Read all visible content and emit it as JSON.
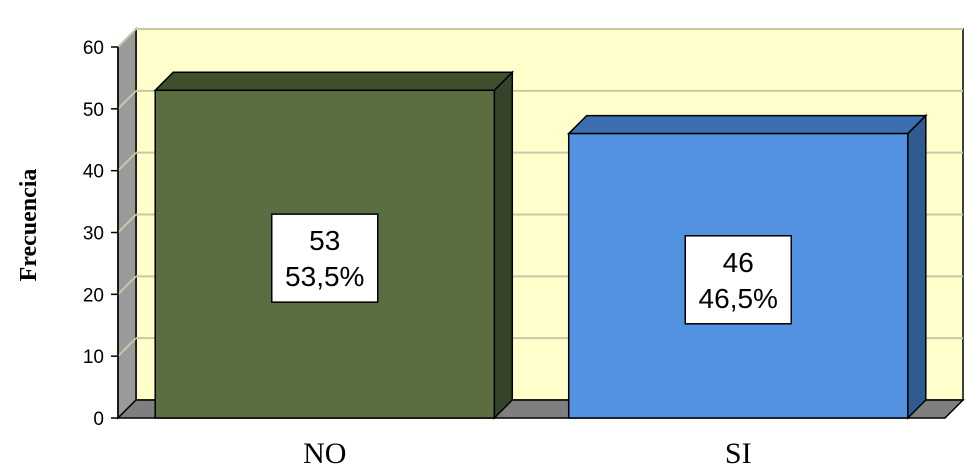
{
  "chart_data": {
    "type": "bar",
    "categories": [
      "NO",
      "SI"
    ],
    "values": [
      53,
      46
    ],
    "percentages": [
      "53,5%",
      "46,5%"
    ],
    "ylabel": "Frecuencia",
    "xlabel": "",
    "ylim": [
      0,
      60
    ],
    "yticks": [
      "0",
      "10",
      "20",
      "30",
      "40",
      "50",
      "60"
    ],
    "grid": true,
    "style_3d": true,
    "colors": {
      "plot_background": "#ffffcc",
      "bar_fronts": [
        "#5b6e42",
        "#5292e0"
      ],
      "bar_tops": [
        "#3f4f2d",
        "#3b6fb0"
      ],
      "bar_sides": [
        "#35432a",
        "#2f5a92"
      ],
      "floor": "#7f7f7f",
      "left_wall": "#9a9a9a",
      "gridline": "#c8c8a8"
    }
  }
}
